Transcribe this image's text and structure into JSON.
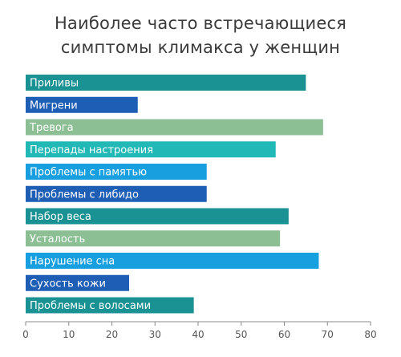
{
  "title_lines": [
    "Наиболее часто встречающиеся",
    "симптомы климакса у женщин"
  ],
  "chart_data": {
    "type": "bar",
    "orientation": "horizontal",
    "title": "Наиболее часто встречающиеся симптомы климакса у женщин",
    "xlabel": "",
    "ylabel": "",
    "xlim": [
      0,
      80
    ],
    "x_ticks": [
      0,
      10,
      20,
      30,
      40,
      50,
      60,
      70,
      80
    ],
    "grid": false,
    "legend": "none",
    "categories": [
      "Приливы",
      "Мигрени",
      "Тревога",
      "Перепады настроения",
      "Проблемы с памятью",
      "Проблемы с либидо",
      "Набор веса",
      "Усталость",
      "Нарушение сна",
      "Сухость кожи",
      "Проблемы с волосами"
    ],
    "values": [
      65,
      26,
      69,
      58,
      42,
      42,
      61,
      59,
      68,
      24,
      39
    ],
    "colors": [
      "#1a9192",
      "#1f5eb5",
      "#8cbf94",
      "#21b8b6",
      "#179fe0",
      "#1f5eb5",
      "#1a9192",
      "#8cbf94",
      "#179fe0",
      "#1f5eb5",
      "#1a9192"
    ]
  }
}
